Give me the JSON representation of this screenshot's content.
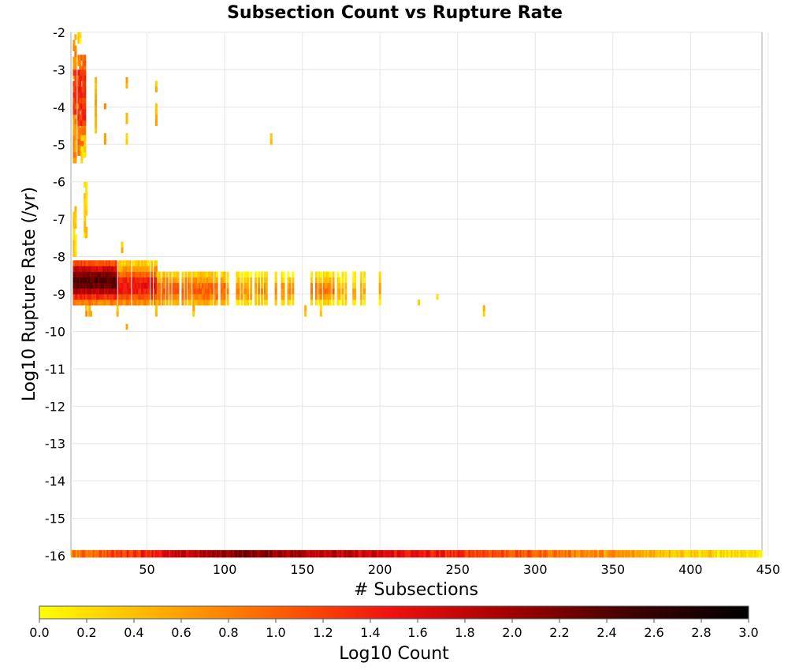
{
  "chart_data": {
    "type": "heatmap",
    "title": "Subsection Count vs Rupture Rate",
    "xlabel": "# Subsections",
    "ylabel": "Log10 Rupture Rate (/yr)",
    "xlim": [
      1,
      446
    ],
    "ylim": [
      -16,
      -2
    ],
    "x_ticks": [
      "50",
      "100",
      "150",
      "200",
      "250",
      "300",
      "350",
      "400",
      "450"
    ],
    "y_ticks": [
      "-2",
      "-3",
      "-4",
      "-5",
      "-6",
      "-7",
      "-8",
      "-9",
      "-10",
      "-11",
      "-12",
      "-13",
      "-14",
      "-15",
      "-16"
    ],
    "grid": true,
    "bin_height": 0.15,
    "colorbar": {
      "label": "Log10 Count",
      "min": 0.0,
      "max": 3.0,
      "ticks": [
        "0.0",
        "0.2",
        "0.4",
        "0.6",
        "0.8",
        "1.0",
        "1.2",
        "1.4",
        "1.6",
        "1.8",
        "2.0",
        "2.2",
        "2.4",
        "2.6",
        "2.8",
        "3.0"
      ],
      "colors": [
        "#ffff00",
        "#ffb000",
        "#ff6000",
        "#ee1010",
        "#a00000",
        "#400000",
        "#000000"
      ]
    },
    "column_blocks": [
      {
        "x": [
          2,
          4
        ],
        "y": [
          -5.5,
          -2.1
        ],
        "v": 0.7
      },
      {
        "x": [
          2,
          4
        ],
        "y": [
          -4.2,
          -3.1
        ],
        "v": 1.2
      },
      {
        "x": [
          5,
          7
        ],
        "y": [
          -2.3,
          -2.05
        ],
        "v": 0.2
      },
      {
        "x": [
          5,
          10
        ],
        "y": [
          -5.3,
          -2.7
        ],
        "v": 0.9
      },
      {
        "x": [
          5,
          10
        ],
        "y": [
          -4.5,
          -3.0
        ],
        "v": 1.3
      },
      {
        "x": [
          7,
          10
        ],
        "y": [
          -5.5,
          -4.8
        ],
        "v": 0.3
      },
      {
        "x": [
          9,
          11
        ],
        "y": [
          -7.5,
          -6.1
        ],
        "v": 0.3
      },
      {
        "x": [
          2,
          4
        ],
        "y": [
          -8.0,
          -6.7
        ],
        "v": 0.3
      },
      {
        "x": [
          16,
          17
        ],
        "y": [
          -4.7,
          -3.2
        ],
        "v": 0.5
      },
      {
        "x": [
          22,
          23
        ],
        "y": [
          -4.2,
          -3.9
        ],
        "v": 0.6
      },
      {
        "x": [
          22,
          23
        ],
        "y": [
          -5.0,
          -4.7
        ],
        "v": 0.5
      },
      {
        "x": [
          36,
          37
        ],
        "y": [
          -3.5,
          -3.2
        ],
        "v": 0.5
      },
      {
        "x": [
          36,
          37
        ],
        "y": [
          -4.6,
          -4.2
        ],
        "v": 0.4
      },
      {
        "x": [
          36,
          37
        ],
        "y": [
          -5.0,
          -4.7
        ],
        "v": 0.3
      },
      {
        "x": [
          55,
          56
        ],
        "y": [
          -3.6,
          -3.3
        ],
        "v": 0.4
      },
      {
        "x": [
          55,
          56
        ],
        "y": [
          -4.5,
          -3.9
        ],
        "v": 0.5
      },
      {
        "x": [
          129,
          130
        ],
        "y": [
          -5.0,
          -4.7
        ],
        "v": 0.3
      },
      {
        "x": [
          33,
          34
        ],
        "y": [
          -7.9,
          -7.6
        ],
        "v": 0.4
      },
      {
        "x": [
          36,
          37
        ],
        "y": [
          -10.1,
          -9.8
        ],
        "v": 0.4
      },
      {
        "x": [
          10,
          14
        ],
        "y": [
          -9.6,
          -9.3
        ],
        "v": 0.6
      },
      {
        "x": [
          30,
          31
        ],
        "y": [
          -9.6,
          -9.3
        ],
        "v": 0.4
      },
      {
        "x": [
          55,
          56
        ],
        "y": [
          -9.6,
          -9.3
        ],
        "v": 0.4
      },
      {
        "x": [
          79,
          80
        ],
        "y": [
          -9.6,
          -9.3
        ],
        "v": 0.4
      },
      {
        "x": [
          151,
          152
        ],
        "y": [
          -9.6,
          -9.3
        ],
        "v": 0.4
      },
      {
        "x": [
          161,
          162
        ],
        "y": [
          -9.6,
          -9.3
        ],
        "v": 0.4
      },
      {
        "x": [
          224,
          225
        ],
        "y": [
          -9.3,
          -9.0
        ],
        "v": 0.3
      },
      {
        "x": [
          236,
          237
        ],
        "y": [
          -9.3,
          -9.0
        ],
        "v": 0.3
      },
      {
        "x": [
          266,
          267
        ],
        "y": [
          -9.6,
          -9.3
        ],
        "v": 0.3
      },
      {
        "x": [
          271,
          272
        ],
        "y": [
          -9.3,
          -9.0
        ],
        "v": 0.3
      }
    ],
    "band_segments": [
      {
        "y": [
          -9.3,
          -8.2
        ],
        "x": [
          2,
          30
        ],
        "density": 1.0,
        "center": -8.65,
        "peak": 2.4,
        "spread": 0.55
      },
      {
        "y": [
          -9.3,
          -8.2
        ],
        "x": [
          30,
          56
        ],
        "density": 0.85,
        "center": -8.8,
        "peak": 1.5,
        "spread": 0.5
      },
      {
        "y": [
          -9.3,
          -8.5
        ],
        "x": [
          56,
          100
        ],
        "density": 0.7,
        "center": -8.9,
        "peak": 1.0,
        "spread": 0.4
      },
      {
        "y": [
          -9.3,
          -8.4
        ],
        "x": [
          100,
          150
        ],
        "density": 0.4,
        "center": -8.9,
        "peak": 0.7,
        "spread": 0.3
      },
      {
        "y": [
          -9.3,
          -8.4
        ],
        "x": [
          155,
          170
        ],
        "density": 0.55,
        "center": -8.9,
        "peak": 0.9,
        "spread": 0.3
      },
      {
        "y": [
          -9.3,
          -8.4
        ],
        "x": [
          170,
          203
        ],
        "density": 0.3,
        "center": -8.9,
        "peak": 0.5,
        "spread": 0.3
      }
    ],
    "bottom_row": {
      "y": [
        -16.05,
        -15.85
      ],
      "x": [
        1,
        446
      ],
      "peak": 2.2,
      "peak_x": 110
    }
  }
}
